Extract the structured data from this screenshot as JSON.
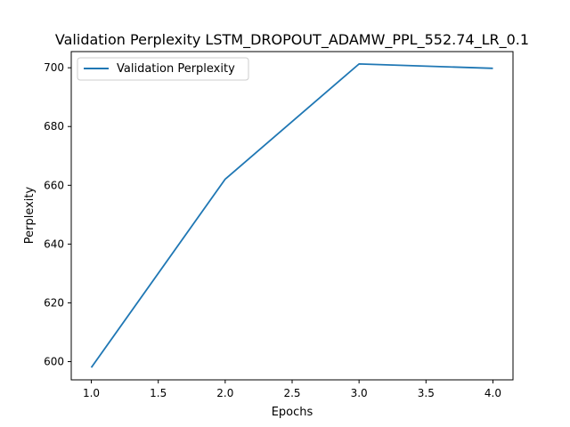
{
  "chart_data": {
    "type": "line",
    "title": "Validation Perplexity LSTM_DROPOUT_ADAMW_PPL_552.74_LR_0.1",
    "xlabel": "Epochs",
    "ylabel": "Perplexity",
    "xlim": [
      0.85,
      4.15
    ],
    "ylim": [
      593.8,
      705.5
    ],
    "x_ticks": [
      1.0,
      1.5,
      2.0,
      2.5,
      3.0,
      3.5,
      4.0
    ],
    "x_tick_labels": [
      "1.0",
      "1.5",
      "2.0",
      "2.5",
      "3.0",
      "3.5",
      "4.0"
    ],
    "y_ticks": [
      600,
      620,
      640,
      660,
      680,
      700
    ],
    "y_tick_labels": [
      "600",
      "620",
      "640",
      "660",
      "680",
      "700"
    ],
    "grid": false,
    "legend_placement": "top-left",
    "series": [
      {
        "name": "Validation Perplexity",
        "color": "#1f77b4",
        "x": [
          1.0,
          2.0,
          3.0,
          4.0
        ],
        "y": [
          598.0,
          662.1,
          701.3,
          699.8
        ]
      }
    ]
  }
}
